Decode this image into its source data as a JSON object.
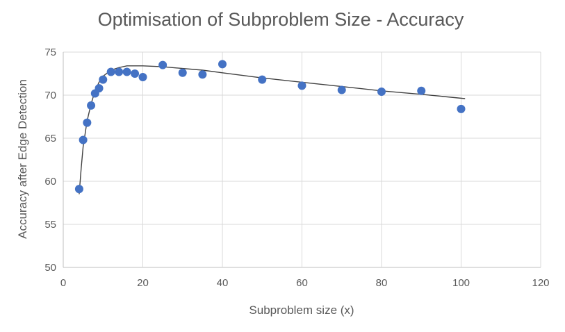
{
  "chart_data": {
    "type": "scatter",
    "title": "Optimisation of Subproblem Size - Accuracy",
    "xlabel": "Subproblem size (x)",
    "ylabel": "Accuracy after Edge Detection",
    "xlim": [
      0,
      120
    ],
    "ylim": [
      50,
      75
    ],
    "x_ticks": [
      0,
      20,
      40,
      60,
      80,
      100,
      120
    ],
    "y_ticks": [
      50,
      55,
      60,
      65,
      70,
      75
    ],
    "grid": true,
    "legend": "none",
    "point_color": "#4472c4",
    "trendline_color": "#404040",
    "series": [
      {
        "name": "Accuracy",
        "x": [
          4,
          5,
          6,
          7,
          8,
          9,
          10,
          12,
          14,
          16,
          18,
          20,
          25,
          30,
          35,
          40,
          50,
          60,
          70,
          80,
          90,
          100
        ],
        "y": [
          59.1,
          64.8,
          66.8,
          68.8,
          70.2,
          70.8,
          71.8,
          72.7,
          72.7,
          72.7,
          72.5,
          72.1,
          73.5,
          72.6,
          72.4,
          73.6,
          71.8,
          71.1,
          70.6,
          70.4,
          70.5,
          68.4
        ]
      }
    ],
    "trendline": {
      "x": [
        4,
        4.5,
        5,
        6,
        7,
        8,
        9,
        10,
        12,
        14,
        16,
        18,
        20,
        25,
        30,
        35,
        40,
        50,
        60,
        70,
        80,
        90,
        101
      ],
      "y": [
        58.5,
        61.5,
        64.0,
        67.0,
        69.0,
        70.5,
        71.5,
        72.2,
        72.9,
        73.2,
        73.4,
        73.4,
        73.4,
        73.3,
        73.1,
        72.9,
        72.6,
        72.0,
        71.5,
        71.0,
        70.5,
        70.1,
        69.6
      ]
    }
  }
}
